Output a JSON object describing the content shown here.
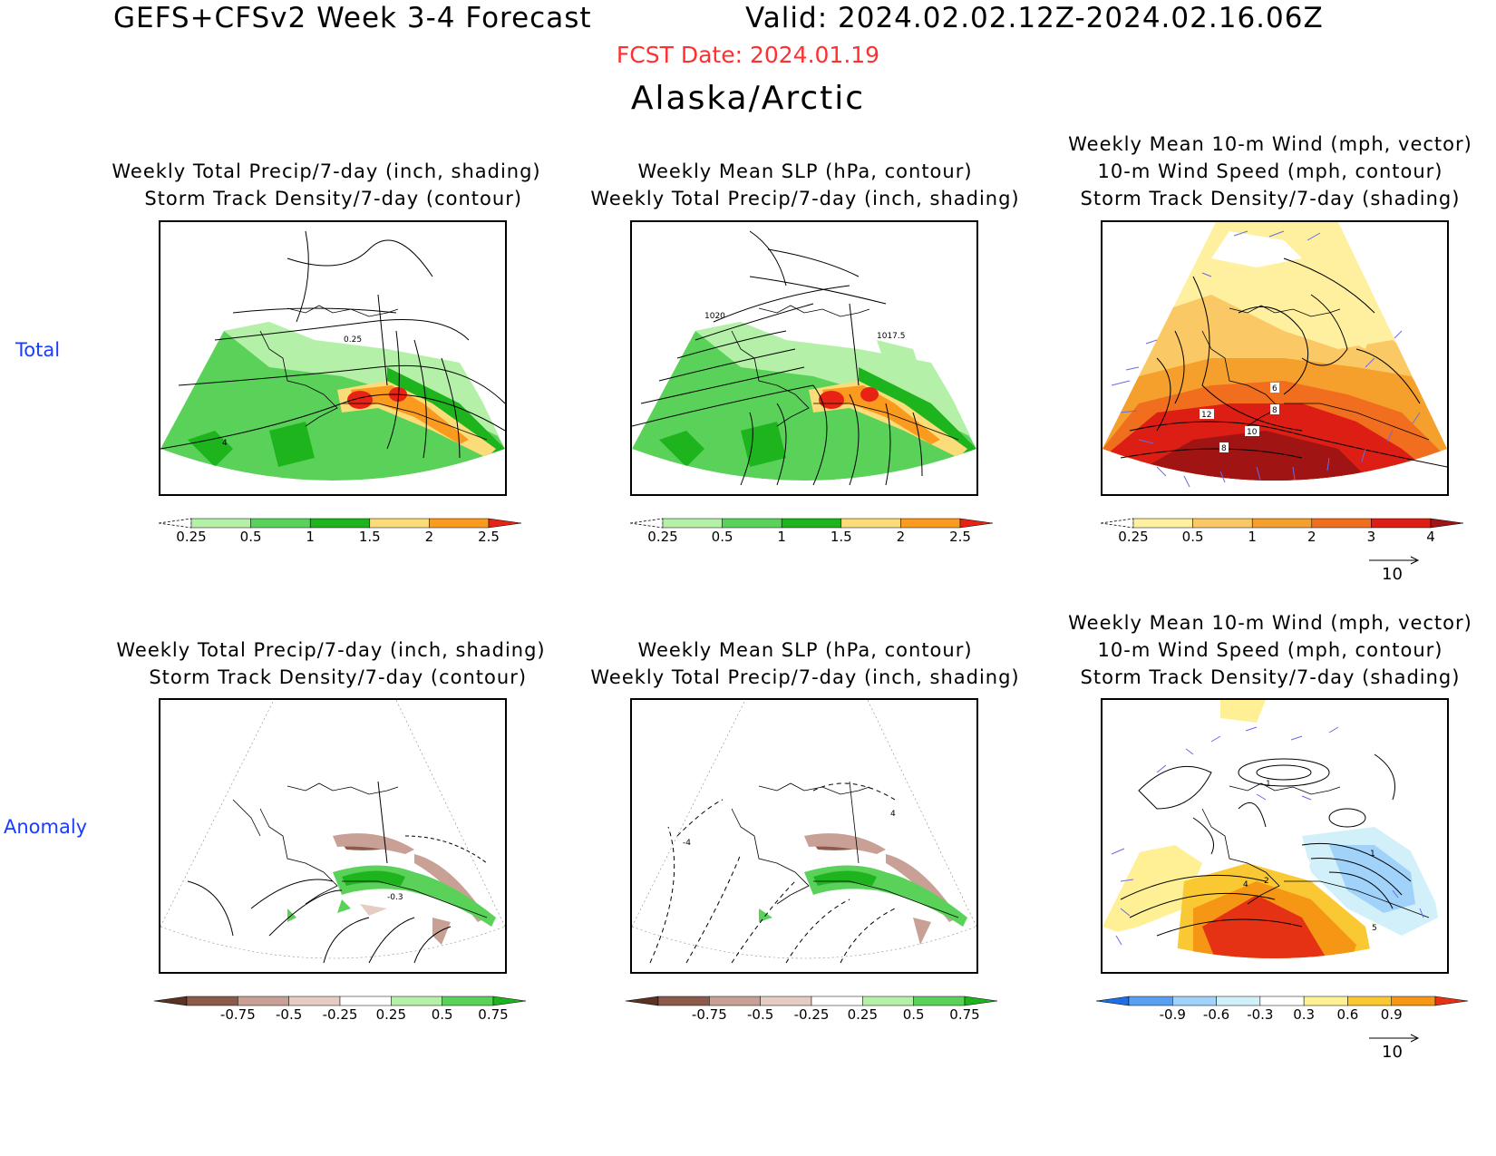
{
  "header": {
    "title": "GEFS+CFSv2 Week 3-4 Forecast",
    "valid": "Valid: 2024.02.02.12Z-2024.02.16.06Z",
    "fcst_date": "FCST Date: 2024.01.19",
    "region": "Alaska/Arctic"
  },
  "rows": [
    {
      "label": "Total"
    },
    {
      "label": "Anomaly"
    }
  ],
  "titles": {
    "col1": "Weekly Total Precip/7-day (inch, shading)\n  Storm Track Density/7-day (contour)",
    "col2": "Weekly Mean SLP (hPa, contour)\nWeekly Total Precip/7-day (inch, shading)",
    "col3": "Weekly Mean 10-m Wind (mph, vector)\n10-m Wind Speed (mph, contour)\nStorm Track Density/7-day (shading)"
  },
  "contour_labels": {
    "p1": [
      "0.25",
      "4"
    ],
    "p2": [
      "1020",
      "1017.5"
    ],
    "p3": [
      "6",
      "8",
      "12",
      "10",
      "8"
    ],
    "p4": [
      "-0.3"
    ],
    "p5": [
      "4",
      "-4"
    ],
    "p6": [
      "1",
      "4",
      "2",
      "1",
      "5"
    ]
  },
  "colorbars": {
    "precip_total": {
      "labels": [
        "0.25",
        "0.5",
        "1",
        "1.5",
        "2",
        "2.5"
      ],
      "colors": [
        "#ffffff",
        "#b4f0a8",
        "#5ad25a",
        "#1eb41e",
        "#fadc78",
        "#fa9a1e",
        "#e62314"
      ]
    },
    "storm_total": {
      "labels": [
        "0.25",
        "0.5",
        "1",
        "2",
        "3",
        "4"
      ],
      "colors": [
        "#ffffff",
        "#fff0a0",
        "#fac864",
        "#f5a02d",
        "#f06e1e",
        "#dc1e14",
        "#a01414"
      ]
    },
    "precip_anom": {
      "labels": [
        "-0.75",
        "-0.5",
        "-0.25",
        "0.25",
        "0.5",
        "0.75"
      ],
      "colors": [
        "#5a3223",
        "#8c5a4b",
        "#c8a096",
        "#e6cdc3",
        "#ffffff",
        "#b4f0a8",
        "#5ad25a",
        "#1eb41e"
      ]
    },
    "storm_anom": {
      "labels": [
        "-0.9",
        "-0.6",
        "-0.3",
        "0.3",
        "0.6",
        "0.9"
      ],
      "colors": [
        "#1e6ee6",
        "#5aa0f0",
        "#a0d2fa",
        "#d2f0fa",
        "#ffffff",
        "#fff096",
        "#fac832",
        "#f59614",
        "#e63214"
      ]
    }
  },
  "vector_ref": "10"
}
